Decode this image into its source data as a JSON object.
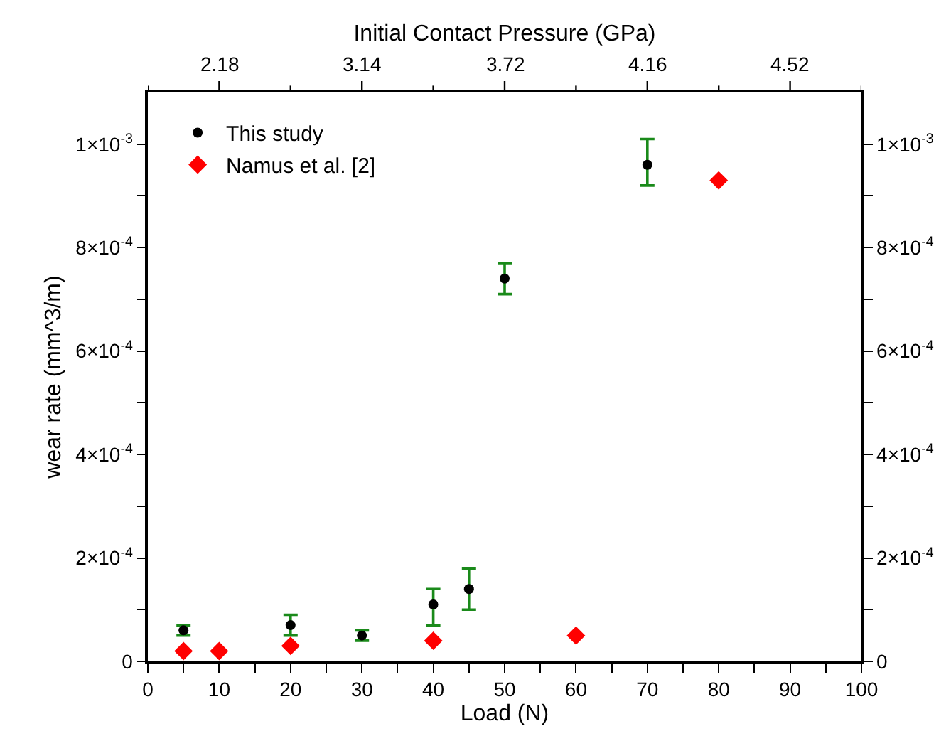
{
  "chart_data": {
    "type": "scatter",
    "xlabel": "Load (N)",
    "ylabel": "wear rate (mm^3/m)",
    "x2label": "Initial Contact Pressure (GPa)",
    "xlim": [
      0,
      100
    ],
    "xticks": [
      0,
      {
        "value": 5,
        "label": null
      },
      10,
      {
        "value": 15,
        "label": null
      },
      20,
      {
        "value": 25,
        "label": null
      },
      30,
      {
        "value": 35,
        "label": null
      },
      40,
      {
        "value": 45,
        "label": null
      },
      50,
      {
        "value": 55,
        "label": null
      },
      60,
      {
        "value": 65,
        "label": null
      },
      70,
      {
        "value": 75,
        "label": null
      },
      80,
      {
        "value": 85,
        "label": null
      },
      90,
      {
        "value": 95,
        "label": null
      },
      100
    ],
    "annotations": [
      "2.18",
      "3.14",
      "3.72",
      "4.16",
      "4.52"
    ],
    "ylim": [
      0,
      0.0011
    ],
    "yticks": [
      {
        "value": 0,
        "label": "0"
      },
      {
        "value": 0.0001,
        "label": null
      },
      {
        "value": 0.0002,
        "label": "2×10$^{-4}$"
      },
      {
        "value": 0.0003,
        "label": null
      },
      {
        "value": 0.0004,
        "label": "4×10$^{-4}$"
      },
      {
        "value": 0.0005,
        "label": null
      },
      {
        "value": 0.0006,
        "label": "6×10$^{-4}$"
      },
      {
        "value": 0.0007,
        "label": null
      },
      {
        "value": 0.0008,
        "label": "8×10$^{-4}$"
      },
      {
        "value": 0.0009,
        "label": null
      },
      {
        "value": 0.001,
        "label": "1×10$^{-3}$"
      }
    ],
    "y2lim": [
      0,
      0.0011
    ],
    "y2ticks": [
      {
        "value": 0,
        "label": "0"
      },
      {
        "value": 0.0001,
        "label": null
      },
      {
        "value": 0.0002,
        "label": "2×10$^{-4}$"
      },
      {
        "value": 0.0003,
        "label": null
      },
      {
        "value": 0.0004,
        "label": "4×10$^{-4}$"
      },
      {
        "value": 0.0005,
        "label": null
      },
      {
        "value": 0.0006,
        "label": "6×10$^{-4}$"
      },
      {
        "value": 0.0007,
        "label": null
      },
      {
        "value": 0.0008,
        "label": "8×10$^{-4}$"
      },
      {
        "value": 0.0009,
        "label": null
      },
      {
        "value": 0.001,
        "label": "1×10$^{-3}$"
      }
    ],
    "legend": "top left",
    "series": [
      {
        "name": "This study",
        "color": "#000000",
        "marker": "circle",
        "x": [
          5,
          20,
          30,
          40,
          45,
          50,
          70
        ],
        "values": [
          6e-05,
          7e-05,
          5e-05,
          0.00011,
          0.00014,
          0.00074,
          0.00096
        ],
        "errors": [
          [
            5e-05,
            7e-05
          ],
          [
            5e-05,
            9e-05
          ],
          [
            4e-05,
            6e-05
          ],
          [
            7e-05,
            0.00014
          ],
          [
            0.0001,
            0.00018
          ],
          [
            0.00071,
            0.00077
          ],
          [
            0.00092,
            0.00101
          ]
        ]
      },
      {
        "name": "Namus et al. [2]",
        "color": "#ff0000",
        "marker": "diamond",
        "x": [
          5,
          10,
          20,
          40,
          60,
          80
        ],
        "values": [
          2e-05,
          2e-05,
          3e-05,
          4e-05,
          5e-05,
          0.00093
        ]
      }
    ]
  }
}
